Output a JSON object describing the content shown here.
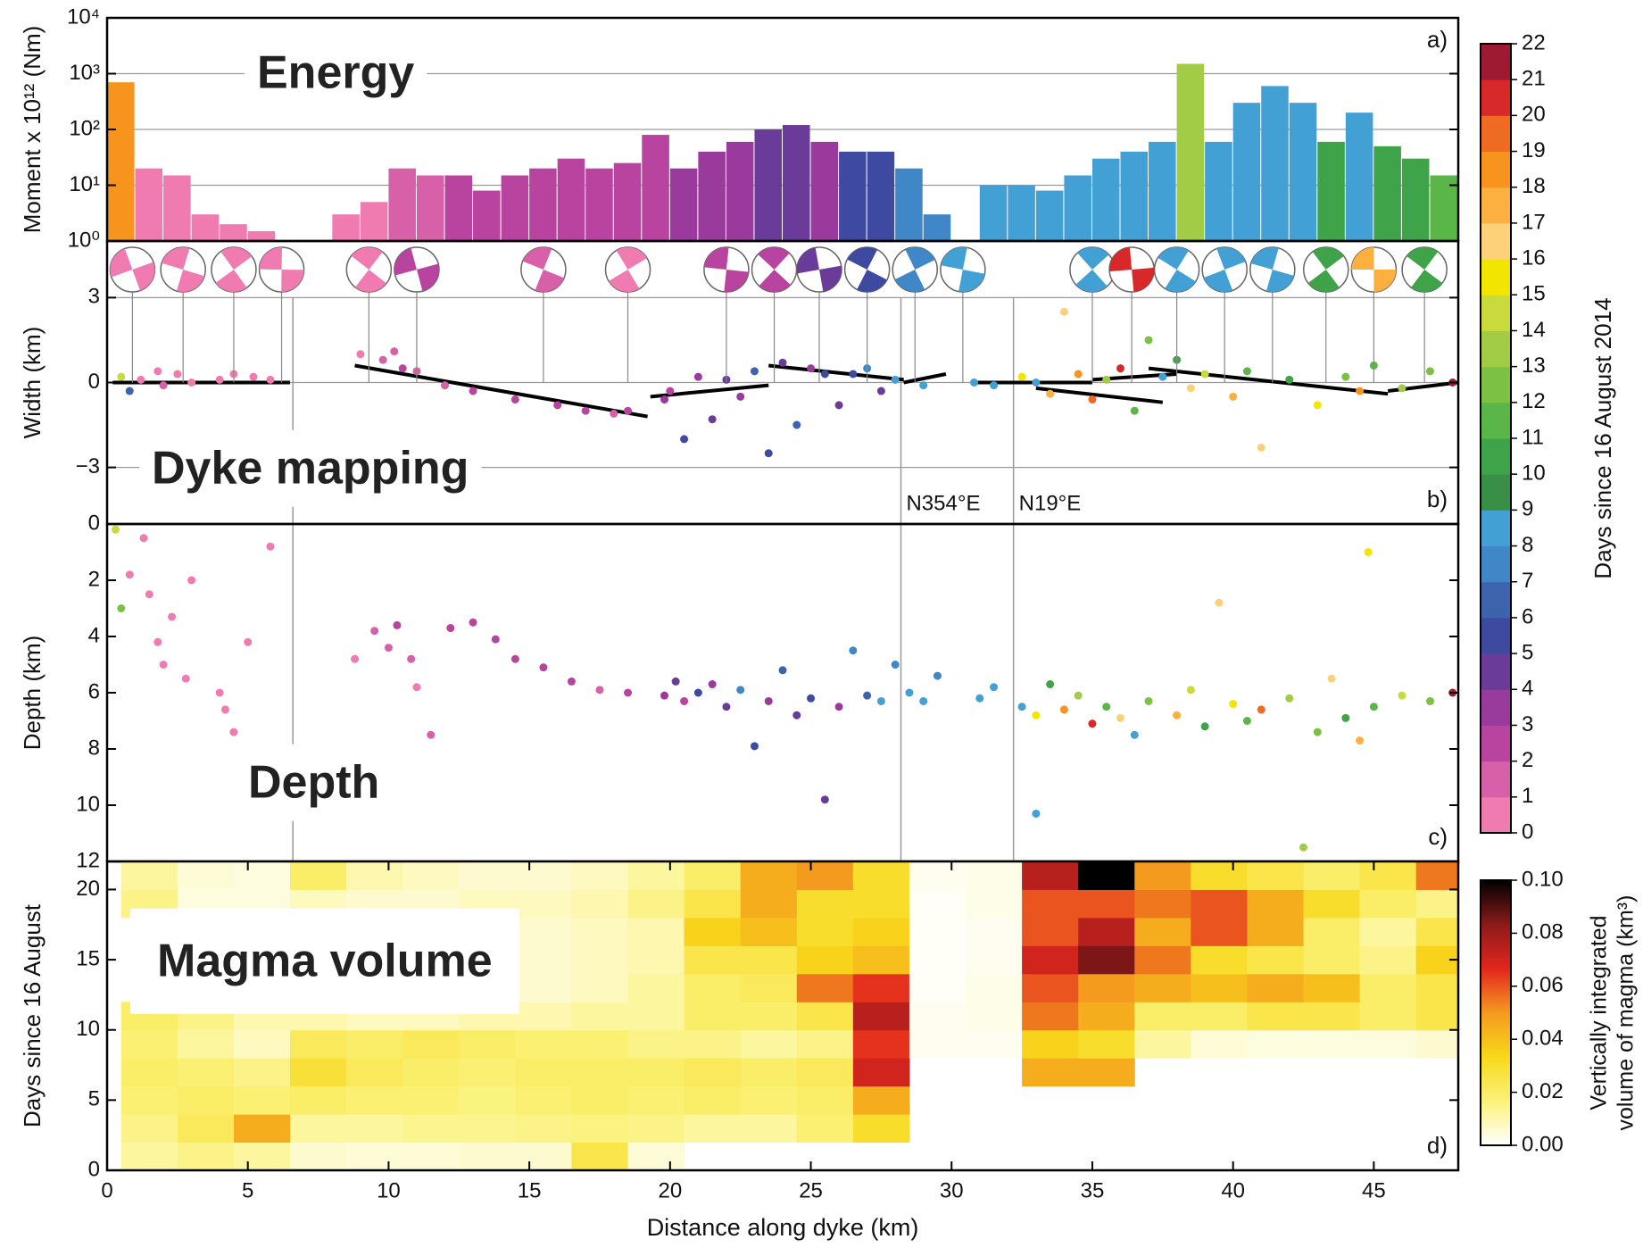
{
  "chart_data": [
    {
      "type": "bar",
      "log": true,
      "ylabel": "Moment x 10¹² (Nm)",
      "panel_label": "a)",
      "annotation": "Energy",
      "grid": true,
      "xlim": [
        0,
        48
      ],
      "ylim": [
        1,
        10000
      ],
      "yticks": [
        {
          "value": 1,
          "label": "10⁰"
        },
        {
          "value": 10,
          "label": "10¹"
        },
        {
          "value": 100,
          "label": "10²"
        },
        {
          "value": 1000,
          "label": "10³"
        },
        {
          "value": 10000,
          "label": "10⁴"
        }
      ],
      "x": [
        0.5,
        1.5,
        2.5,
        3.5,
        4.5,
        5.5,
        6.5,
        7.5,
        8.5,
        9.5,
        10.5,
        11.5,
        12.5,
        13.5,
        14.5,
        15.5,
        16.5,
        17.5,
        18.5,
        19.5,
        20.5,
        21.5,
        22.5,
        23.5,
        24.5,
        25.5,
        26.5,
        27.5,
        28.5,
        29.5,
        30.5,
        31.5,
        32.5,
        33.5,
        34.5,
        35.5,
        36.5,
        37.5,
        38.5,
        39.5,
        40.5,
        41.5,
        42.5,
        43.5,
        44.5,
        45.5,
        46.5,
        47.5
      ],
      "values": [
        700,
        20,
        15,
        3,
        2,
        1.5,
        null,
        null,
        3,
        5,
        20,
        15,
        15,
        8,
        15,
        20,
        30,
        20,
        25,
        80,
        20,
        40,
        60,
        100,
        120,
        60,
        40,
        40,
        20,
        3,
        1,
        10,
        10,
        8,
        15,
        30,
        40,
        60,
        1500,
        60,
        300,
        600,
        300,
        60,
        200,
        50,
        30,
        15
      ],
      "days": [
        18,
        0,
        0,
        0,
        0,
        0,
        0,
        0,
        0,
        0,
        1,
        1,
        2,
        2,
        2,
        2,
        2,
        2,
        2,
        2,
        3,
        3,
        3,
        4,
        4,
        3,
        5,
        5,
        7,
        7,
        7,
        8,
        8,
        8,
        8,
        8,
        8,
        8,
        13,
        8,
        8,
        8,
        8,
        10,
        8,
        10,
        10,
        11
      ],
      "colorbar": {
        "label": "Days since 16 August 2014",
        "ylim": [
          0,
          22
        ],
        "yticks": [
          0,
          1,
          2,
          3,
          4,
          5,
          6,
          7,
          8,
          9,
          10,
          11,
          12,
          13,
          14,
          15,
          16,
          17,
          18,
          19,
          20,
          21,
          22
        ],
        "colors": [
          "#f07bb0",
          "#d860a8",
          "#b8449f",
          "#9a3a9c",
          "#6b3b99",
          "#3d4aa0",
          "#3e63ad",
          "#3f87c6",
          "#43a0d5",
          "#3a8f46",
          "#3fa34a",
          "#5bb648",
          "#7cc143",
          "#a2cc45",
          "#c9da3c",
          "#f2e600",
          "#fdd17a",
          "#fbb040",
          "#f7941d",
          "#f06b22",
          "#d7282a",
          "#9e1a32"
        ]
      }
    },
    {
      "type": "scatter",
      "ylabel": "Width (km)",
      "panel_label": "b)",
      "annotation": "Dyke mapping",
      "grid": true,
      "xlim": [
        0,
        48
      ],
      "ylim": [
        -5,
        5
      ],
      "yticks": [
        {
          "value": -3,
          "label": "−3"
        },
        0,
        3
      ],
      "x": [
        0.5,
        0.8,
        1.2,
        1.8,
        2.0,
        2.5,
        3.0,
        4.0,
        4.5,
        5.2,
        5.8,
        9.0,
        9.8,
        10.2,
        10.5,
        11.0,
        12.0,
        13.0,
        14.5,
        16.0,
        17.0,
        18.0,
        18.5,
        19.8,
        20.0,
        20.5,
        21.0,
        21.5,
        22.0,
        22.5,
        23.0,
        23.5,
        24.0,
        24.5,
        25.0,
        25.5,
        26.0,
        26.5,
        27.0,
        27.5,
        28.0,
        29.0,
        30.8,
        31.5,
        32.5,
        33.0,
        33.5,
        34.0,
        34.5,
        35.0,
        35.5,
        36.0,
        36.5,
        37.0,
        37.5,
        38.0,
        38.5,
        39.0,
        40.0,
        40.5,
        41.0,
        42.0,
        43.0,
        44.0,
        44.5,
        45.0,
        46.0,
        47.0,
        47.8
      ],
      "values": [
        0.2,
        -0.3,
        0.1,
        0.4,
        -0.1,
        0.3,
        0,
        0.1,
        0.3,
        0.2,
        0.1,
        1.0,
        0.8,
        1.1,
        0.5,
        0.4,
        -0.1,
        -0.3,
        -0.6,
        -0.8,
        -1.0,
        -1.1,
        -1.0,
        -0.6,
        -0.3,
        -2.0,
        0.2,
        -1.3,
        0.1,
        -0.5,
        0.4,
        -2.5,
        0.7,
        -1.5,
        0.5,
        0.3,
        -0.8,
        0.3,
        0.5,
        -0.3,
        0.1,
        -0.1,
        0,
        -0.1,
        0.2,
        0,
        -0.4,
        2.5,
        0.3,
        -0.6,
        0.1,
        0.5,
        -1.0,
        1.5,
        0.2,
        0.8,
        -0.2,
        0.3,
        -0.5,
        0.4,
        -2.3,
        0.1,
        -0.8,
        0.2,
        -0.3,
        0.6,
        -0.2,
        0.4,
        0
      ],
      "days": [
        14,
        6,
        0,
        0,
        1,
        0,
        0,
        0,
        0,
        0,
        0,
        0,
        1,
        1,
        2,
        1,
        1,
        2,
        2,
        2,
        2,
        1,
        2,
        3,
        2,
        5,
        3,
        4,
        4,
        3,
        6,
        5,
        4,
        6,
        3,
        5,
        4,
        5,
        7,
        4,
        8,
        8,
        8,
        8,
        15,
        8,
        17,
        16,
        18,
        19,
        13,
        20,
        11,
        12,
        8,
        10,
        16,
        14,
        17,
        11,
        16,
        10,
        15,
        12,
        18,
        11,
        13,
        12,
        21
      ],
      "fit_lines": [
        {
          "x": [
            0.2,
            6.5
          ],
          "values": [
            0,
            0
          ]
        },
        {
          "x": [
            8.8,
            19.2
          ],
          "values": [
            0.6,
            -1.2
          ]
        },
        {
          "x": [
            19.3,
            23.5
          ],
          "values": [
            -0.5,
            -0.1
          ]
        },
        {
          "x": [
            23.5,
            28.3
          ],
          "values": [
            0.6,
            0.1
          ]
        },
        {
          "x": [
            28.3,
            29.8
          ],
          "values": [
            0,
            0.3
          ]
        },
        {
          "x": [
            30.8,
            35
          ],
          "values": [
            0,
            0
          ]
        },
        {
          "x": [
            33,
            37.5
          ],
          "values": [
            -0.2,
            -0.7
          ]
        },
        {
          "x": [
            35,
            38
          ],
          "values": [
            0.1,
            0.3
          ]
        },
        {
          "x": [
            37,
            45.5
          ],
          "values": [
            0.5,
            -0.4
          ]
        },
        {
          "x": [
            45.5,
            48
          ],
          "values": [
            -0.3,
            0
          ]
        }
      ],
      "section_lines": [
        {
          "value": 6.6
        },
        {
          "value": 28.2,
          "label": "N354°E"
        },
        {
          "value": 32.2,
          "label": "N19°E"
        }
      ],
      "focal_mechanisms": {
        "x": [
          0.9,
          2.7,
          4.5,
          6.2,
          9.3,
          11.0,
          15.5,
          18.5,
          22.0,
          23.7,
          25.3,
          27.0,
          28.7,
          30.4,
          35.0,
          36.4,
          38.0,
          39.7,
          41.4,
          43.3,
          45.0,
          46.8
        ],
        "days": [
          0,
          0,
          0,
          0,
          0,
          2,
          1,
          0,
          2,
          2,
          4,
          5,
          7,
          8,
          8,
          20,
          8,
          8,
          8,
          10,
          17,
          10
        ]
      }
    },
    {
      "type": "scatter",
      "ylabel": "Depth (km)",
      "panel_label": "c)",
      "annotation": "Depth",
      "xlim": [
        0,
        48
      ],
      "ylim": [
        12,
        0
      ],
      "yticks": [
        0,
        2,
        4,
        6,
        8,
        10,
        12
      ],
      "x": [
        0.3,
        0.5,
        0.8,
        1.3,
        1.5,
        1.8,
        2.0,
        2.3,
        2.8,
        3.0,
        4.0,
        4.2,
        4.5,
        5.0,
        5.8,
        8.8,
        9.5,
        10.0,
        10.3,
        10.8,
        11.0,
        11.5,
        12.2,
        13.0,
        13.8,
        14.5,
        15.5,
        16.5,
        17.5,
        18.5,
        19.8,
        20.2,
        20.5,
        21.0,
        21.5,
        22.0,
        22.5,
        23.0,
        23.5,
        24.0,
        24.5,
        25.0,
        25.5,
        26.0,
        26.5,
        27.0,
        27.5,
        28.0,
        28.5,
        29.0,
        29.5,
        31.0,
        31.5,
        32.5,
        33.0,
        33.5,
        34.0,
        34.5,
        35.0,
        35.5,
        36.0,
        36.5,
        37.0,
        38.0,
        38.5,
        39.0,
        40.0,
        40.5,
        41.0,
        42.0,
        43.0,
        43.5,
        44.0,
        44.5,
        45.0,
        46.0,
        47.0,
        47.8,
        39.5,
        44.8,
        33.0,
        42.5
      ],
      "values": [
        0.2,
        3.0,
        1.8,
        0.5,
        2.5,
        4.2,
        5.0,
        3.3,
        5.5,
        2.0,
        6.0,
        6.6,
        7.4,
        4.2,
        0.8,
        4.8,
        3.8,
        4.4,
        3.6,
        4.8,
        5.8,
        7.5,
        3.7,
        3.5,
        4.1,
        4.8,
        5.1,
        5.6,
        5.9,
        6.0,
        6.1,
        5.6,
        6.3,
        6.0,
        5.7,
        6.5,
        5.9,
        7.9,
        6.3,
        5.2,
        6.8,
        6.2,
        9.8,
        6.5,
        4.5,
        6.1,
        6.3,
        5.0,
        6.0,
        6.3,
        5.4,
        6.2,
        5.8,
        6.5,
        6.8,
        5.7,
        6.6,
        6.1,
        7.1,
        6.5,
        6.9,
        7.5,
        6.3,
        6.8,
        5.9,
        7.2,
        6.4,
        7.0,
        6.6,
        6.2,
        7.4,
        5.5,
        6.9,
        7.7,
        6.5,
        6.1,
        6.3,
        6.0,
        2.8,
        1.0,
        10.3,
        11.5
      ],
      "days": [
        14,
        12,
        0,
        0,
        0,
        0,
        0,
        0,
        0,
        0,
        0,
        0,
        0,
        0,
        0,
        0,
        1,
        1,
        2,
        1,
        0,
        1,
        2,
        2,
        2,
        2,
        2,
        2,
        1,
        2,
        3,
        4,
        2,
        5,
        3,
        4,
        7,
        5,
        3,
        6,
        4,
        5,
        4,
        3,
        7,
        6,
        8,
        7,
        8,
        8,
        7,
        8,
        8,
        8,
        15,
        10,
        18,
        13,
        20,
        11,
        16,
        8,
        12,
        17,
        14,
        10,
        15,
        11,
        19,
        13,
        12,
        16,
        10,
        17,
        11,
        14,
        12,
        21,
        16,
        15,
        8,
        13
      ],
      "section_lines": [
        {
          "value": 6.6
        },
        {
          "value": 28.2
        },
        {
          "value": 32.2
        }
      ]
    },
    {
      "type": "heatmap",
      "ylabel": "Days since 16 August",
      "xlabel": "Distance along dyke (km)",
      "panel_label": "d)",
      "annotation": "Magma volume",
      "xlim": [
        0,
        48
      ],
      "ylim": [
        0,
        22
      ],
      "xticks": [
        0,
        5,
        10,
        15,
        20,
        25,
        30,
        35,
        40,
        45
      ],
      "yticks": [
        0,
        5,
        10,
        15,
        20
      ],
      "xbins": [
        0.5,
        2.5,
        4.5,
        6.5,
        8.5,
        10.5,
        12.5,
        14.5,
        16.5,
        18.5,
        20.5,
        22.5,
        24.5,
        26.5,
        28.5,
        30.5,
        32.5,
        34.5,
        36.5,
        38.5,
        40.5,
        42.5,
        44.5,
        46.5,
        48.5
      ],
      "ybins": [
        0,
        2,
        4,
        6,
        8,
        10,
        12,
        14,
        16,
        18,
        20,
        22
      ],
      "values": [
        [
          0.012,
          0.015,
          0.012,
          0.006,
          0.005,
          0.005,
          0.006,
          0.006,
          0.025,
          0.005,
          null,
          null,
          null,
          null,
          null,
          null,
          null,
          null,
          null,
          null,
          null,
          null,
          null,
          null
        ],
        [
          0.015,
          0.022,
          0.045,
          0.012,
          0.012,
          0.014,
          0.014,
          0.015,
          0.016,
          0.015,
          0.012,
          0.012,
          0.018,
          0.03,
          null,
          null,
          null,
          null,
          null,
          null,
          null,
          null,
          null,
          null
        ],
        [
          0.018,
          0.02,
          0.018,
          0.02,
          0.018,
          0.018,
          0.016,
          0.018,
          0.02,
          0.018,
          0.02,
          0.018,
          0.02,
          0.045,
          null,
          null,
          null,
          null,
          null,
          null,
          null,
          null,
          null,
          null
        ],
        [
          0.02,
          0.018,
          0.015,
          0.028,
          0.022,
          0.02,
          0.018,
          0.02,
          0.02,
          0.02,
          0.022,
          0.02,
          0.022,
          0.07,
          null,
          null,
          0.045,
          0.045,
          null,
          null,
          null,
          null,
          null,
          null
        ],
        [
          0.018,
          0.012,
          0.008,
          0.022,
          0.02,
          0.022,
          0.02,
          0.018,
          0.018,
          0.015,
          0.015,
          0.012,
          0.015,
          0.065,
          0.002,
          0.002,
          0.035,
          0.03,
          0.012,
          0.005,
          0.004,
          0.004,
          0.004,
          0.006
        ],
        [
          0.02,
          0.015,
          0.01,
          0.01,
          0.008,
          0.008,
          0.01,
          0.01,
          0.012,
          0.012,
          0.02,
          0.02,
          0.025,
          0.075,
          0.002,
          0.003,
          0.055,
          0.045,
          0.02,
          0.02,
          0.025,
          0.025,
          0.02,
          0.025
        ],
        [
          null,
          null,
          null,
          0.004,
          0.004,
          0.004,
          0.004,
          0.006,
          0.008,
          0.012,
          0.02,
          0.022,
          0.055,
          0.065,
          0.001,
          0.003,
          0.06,
          0.05,
          0.045,
          0.04,
          0.045,
          0.04,
          0.02,
          0.025
        ],
        [
          null,
          null,
          null,
          0.004,
          0.004,
          0.004,
          0.005,
          0.006,
          0.008,
          0.01,
          0.025,
          0.025,
          0.035,
          0.04,
          0.001,
          0.002,
          0.07,
          0.085,
          0.055,
          0.03,
          0.025,
          0.02,
          0.015,
          0.035
        ],
        [
          null,
          null,
          null,
          0.005,
          0.005,
          0.005,
          0.006,
          0.006,
          0.008,
          0.01,
          0.035,
          0.04,
          0.03,
          0.035,
          0.001,
          0.002,
          0.06,
          0.075,
          0.045,
          0.06,
          0.045,
          0.02,
          0.012,
          0.025
        ],
        [
          0.015,
          0.004,
          0.004,
          0.008,
          0.006,
          0.006,
          0.008,
          0.008,
          0.01,
          0.015,
          0.025,
          0.045,
          0.03,
          0.03,
          0.001,
          0.003,
          0.06,
          0.06,
          0.055,
          0.06,
          0.045,
          0.03,
          0.02,
          0.015
        ],
        [
          0.012,
          0.005,
          0.004,
          0.02,
          0.01,
          0.008,
          0.006,
          0.006,
          0.008,
          0.012,
          0.02,
          0.045,
          0.05,
          0.03,
          0.002,
          0.003,
          0.075,
          0.1,
          0.05,
          0.03,
          0.025,
          0.02,
          0.025,
          0.055
        ]
      ],
      "colorbar": {
        "label": [
          "Vertically integrated",
          "volume of magma (km³)"
        ],
        "ylim": [
          0,
          0.1
        ],
        "yticks": [
          {
            "value": 0,
            "label": "0.00"
          },
          {
            "value": 0.02,
            "label": "0.02"
          },
          {
            "value": 0.04,
            "label": "0.04"
          },
          {
            "value": 0.06,
            "label": "0.06"
          },
          {
            "value": 0.08,
            "label": "0.08"
          },
          {
            "value": 0.1,
            "label": "0.10"
          }
        ],
        "colors": [
          "#ffffff",
          "#fbf27a",
          "#f8d81a",
          "#f49a1f",
          "#e3261d",
          "#8b1a1a",
          "#000000"
        ]
      }
    }
  ]
}
